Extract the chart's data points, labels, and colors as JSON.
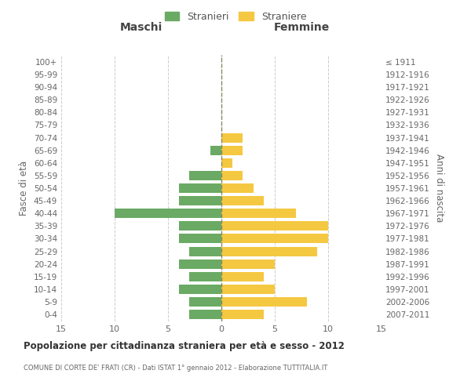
{
  "age_groups": [
    "0-4",
    "5-9",
    "10-14",
    "15-19",
    "20-24",
    "25-29",
    "30-34",
    "35-39",
    "40-44",
    "45-49",
    "50-54",
    "55-59",
    "60-64",
    "65-69",
    "70-74",
    "75-79",
    "80-84",
    "85-89",
    "90-94",
    "95-99",
    "100+"
  ],
  "birth_years": [
    "2007-2011",
    "2002-2006",
    "1997-2001",
    "1992-1996",
    "1987-1991",
    "1982-1986",
    "1977-1981",
    "1972-1976",
    "1967-1971",
    "1962-1966",
    "1957-1961",
    "1952-1956",
    "1947-1951",
    "1942-1946",
    "1937-1941",
    "1932-1936",
    "1927-1931",
    "1922-1926",
    "1917-1921",
    "1912-1916",
    "≤ 1911"
  ],
  "males": [
    3,
    3,
    4,
    3,
    4,
    3,
    4,
    4,
    10,
    4,
    4,
    3,
    0,
    1,
    0,
    0,
    0,
    0,
    0,
    0,
    0
  ],
  "females": [
    4,
    8,
    5,
    4,
    5,
    9,
    10,
    10,
    7,
    4,
    3,
    2,
    1,
    2,
    2,
    0,
    0,
    0,
    0,
    0,
    0
  ],
  "male_color": "#6aaa64",
  "female_color": "#f5c842",
  "grid_color": "#cccccc",
  "dashed_line_color": "#888860",
  "title": "Popolazione per cittadinanza straniera per età e sesso - 2012",
  "subtitle": "COMUNE DI CORTE DE' FRATI (CR) - Dati ISTAT 1° gennaio 2012 - Elaborazione TUTTITALIA.IT",
  "xlabel_left": "Maschi",
  "xlabel_right": "Femmine",
  "ylabel_left": "Fasce di età",
  "ylabel_right": "Anni di nascita",
  "legend_male": "Stranieri",
  "legend_female": "Straniere",
  "xlim": 15,
  "background_color": "#ffffff"
}
